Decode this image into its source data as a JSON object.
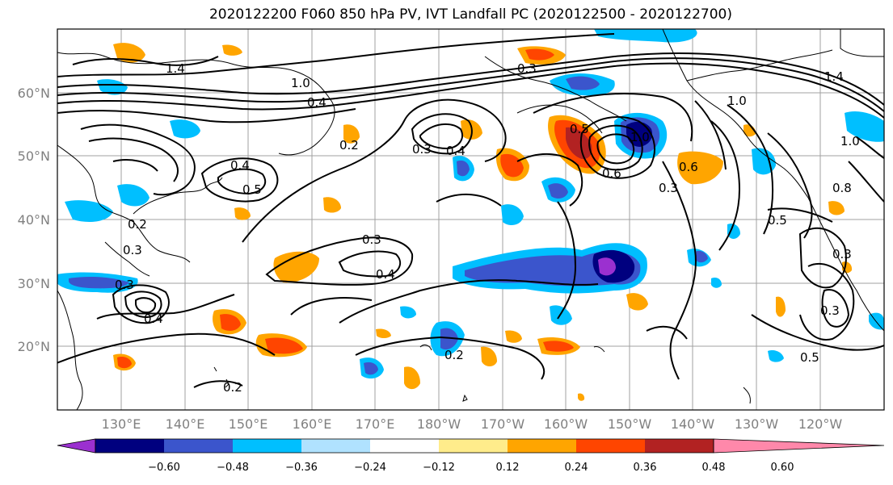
{
  "title": "2020122200 F060 850 hPa PV, IVT Landfall PC (2020122500 - 2020122700)",
  "latitude_labels": [
    "60°N",
    "50°N",
    "40°N",
    "30°N",
    "20°N"
  ],
  "longitude_labels": [
    "130°E",
    "140°E",
    "150°E",
    "160°E",
    "170°E",
    "180°W",
    "170°W",
    "160°W",
    "150°W",
    "140°W",
    "130°W",
    "120°W"
  ],
  "colorbar": {
    "colors": [
      "#9b30d0",
      "#00007f",
      "#3b55cc",
      "#00bfff",
      "#b0e2ff",
      "#ffffff",
      "#ffec8b",
      "#ffa500",
      "#ff4500",
      "#b22222",
      "#ff88aa"
    ],
    "tick_labels": [
      "−0.60",
      "−0.48",
      "−0.36",
      "−0.24",
      "−0.12",
      "0.12",
      "0.24",
      "0.36",
      "0.48",
      "0.60"
    ]
  },
  "contour_labels": [
    {
      "text": "1.4"
    },
    {
      "text": "1.4"
    },
    {
      "text": "1.0"
    },
    {
      "text": "0.4"
    },
    {
      "text": "0.2"
    },
    {
      "text": "0.4"
    },
    {
      "text": "0.5"
    },
    {
      "text": "0.2"
    },
    {
      "text": "0.3"
    },
    {
      "text": "0.3"
    },
    {
      "text": "0.4"
    },
    {
      "text": "0.3"
    },
    {
      "text": "0.4"
    },
    {
      "text": "0.3"
    },
    {
      "text": "0.2"
    },
    {
      "text": "0.4"
    },
    {
      "text": "0.3"
    },
    {
      "text": "0.2"
    },
    {
      "text": "0.6"
    },
    {
      "text": "1.0"
    },
    {
      "text": "0.3"
    },
    {
      "text": "0.5"
    },
    {
      "text": "0.6"
    },
    {
      "text": "0.5"
    },
    {
      "text": "0.3"
    },
    {
      "text": "0.5"
    },
    {
      "text": "1.0"
    },
    {
      "text": "1.0"
    },
    {
      "text": "0.8"
    },
    {
      "text": "0.3"
    }
  ]
}
